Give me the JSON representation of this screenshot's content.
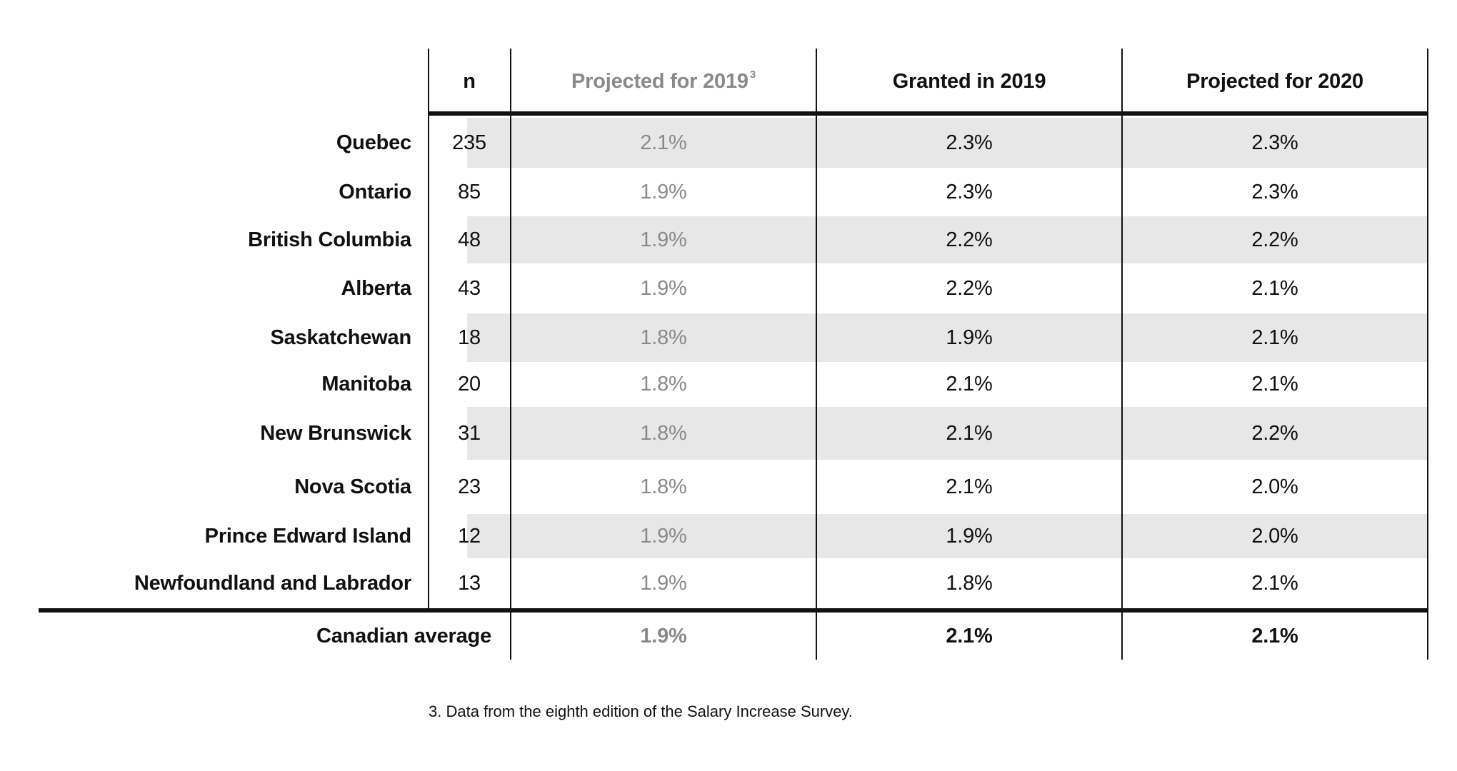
{
  "table": {
    "columns": {
      "n": "n",
      "projected_2019": "Projected for 2019",
      "projected_2019_note": "3",
      "granted_2019": "Granted in 2019",
      "projected_2020": "Projected for 2020"
    },
    "rows": [
      {
        "province": "Quebec",
        "n": "235",
        "projected_2019": "2.1%",
        "granted_2019": "2.3%",
        "projected_2020": "2.3%"
      },
      {
        "province": "Ontario",
        "n": "85",
        "projected_2019": "1.9%",
        "granted_2019": "2.3%",
        "projected_2020": "2.3%"
      },
      {
        "province": "British Columbia",
        "n": "48",
        "projected_2019": "1.9%",
        "granted_2019": "2.2%",
        "projected_2020": "2.2%"
      },
      {
        "province": "Alberta",
        "n": "43",
        "projected_2019": "1.9%",
        "granted_2019": "2.2%",
        "projected_2020": "2.1%"
      },
      {
        "province": "Saskatchewan",
        "n": "18",
        "projected_2019": "1.8%",
        "granted_2019": "1.9%",
        "projected_2020": "2.1%"
      },
      {
        "province": "Manitoba",
        "n": "20",
        "projected_2019": "1.8%",
        "granted_2019": "2.1%",
        "projected_2020": "2.1%"
      },
      {
        "province": "New Brunswick",
        "n": "31",
        "projected_2019": "1.8%",
        "granted_2019": "2.1%",
        "projected_2020": "2.2%"
      },
      {
        "province": "Nova Scotia",
        "n": "23",
        "projected_2019": "1.8%",
        "granted_2019": "2.1%",
        "projected_2020": "2.0%"
      },
      {
        "province": "Prince Edward Island",
        "n": "12",
        "projected_2019": "1.9%",
        "granted_2019": "1.9%",
        "projected_2020": "2.0%"
      },
      {
        "province": "Newfoundland and Labrador",
        "n": "13",
        "projected_2019": "1.9%",
        "granted_2019": "1.8%",
        "projected_2020": "2.1%"
      }
    ],
    "average": {
      "label": "Canadian average",
      "projected_2019": "1.9%",
      "granted_2019": "2.1%",
      "projected_2020": "2.1%"
    }
  },
  "footnote": "3. Data from the eighth edition of the Salary Increase Survey."
}
